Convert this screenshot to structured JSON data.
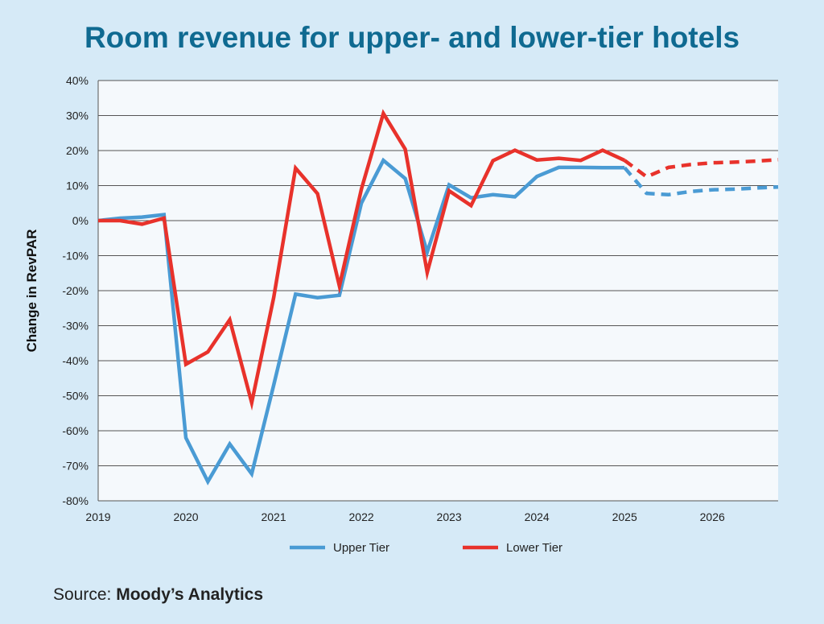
{
  "chart_data": {
    "type": "line",
    "title": "Room revenue for upper- and lower-tier hotels",
    "ylabel": "Change in RevPAR",
    "xlabel": "",
    "ylim": [
      -80,
      40
    ],
    "xlim": [
      2019,
      2026.75
    ],
    "y_ticks": [
      40,
      30,
      20,
      10,
      0,
      -10,
      -20,
      -30,
      -40,
      -50,
      -60,
      -70,
      -80
    ],
    "y_tick_labels": [
      "40%",
      "30%",
      "20%",
      "10%",
      "0%",
      "-10%",
      "-20%",
      "-30%",
      "-40%",
      "-50%",
      "-60%",
      "-70%",
      "-80%"
    ],
    "x_ticks": [
      2019,
      2020,
      2021,
      2022,
      2023,
      2024,
      2025,
      2026
    ],
    "x_tick_labels": [
      "2019",
      "2020",
      "2021",
      "2022",
      "2023",
      "2024",
      "2025",
      "2026"
    ],
    "grid": true,
    "legend_position": "bottom",
    "x": [
      2019,
      2019.25,
      2019.5,
      2019.75,
      2020,
      2020.25,
      2020.5,
      2020.75,
      2021,
      2021.25,
      2021.5,
      2021.75,
      2022,
      2022.25,
      2022.5,
      2022.75,
      2023,
      2023.25,
      2023.5,
      2023.75,
      2024,
      2024.25,
      2024.5,
      2024.75,
      2025,
      2025.25,
      2025.5,
      2025.75,
      2026,
      2026.25,
      2026.5,
      2026.75
    ],
    "forecast_start": 2025,
    "series": [
      {
        "name": "Upper Tier",
        "color": "#4a9bd4",
        "values": [
          0,
          0.7,
          1.0,
          1.7,
          -62,
          -74.5,
          -63.8,
          -72.3,
          -47,
          -21,
          -22,
          -21.3,
          5,
          17.2,
          12,
          -9,
          10.2,
          6.5,
          7.4,
          6.8,
          12.6,
          15.2,
          15.2,
          15.1,
          15.1,
          7.8,
          7.4,
          8.3,
          8.8,
          9.0,
          9.3,
          9.6
        ]
      },
      {
        "name": "Lower Tier",
        "color": "#e8322b",
        "values": [
          0,
          0,
          -1.0,
          0.7,
          -41,
          -37.5,
          -28.3,
          -52,
          -22,
          15,
          7.7,
          -18.7,
          9,
          30.6,
          20.4,
          -14.8,
          8.5,
          4.3,
          17.1,
          20.1,
          17.3,
          17.8,
          17.2,
          20.1,
          17.2,
          12.5,
          15.2,
          16.0,
          16.5,
          16.7,
          17.0,
          17.4
        ]
      }
    ]
  },
  "source": {
    "prefix": "Source: ",
    "name": "Moody’s Analytics"
  }
}
